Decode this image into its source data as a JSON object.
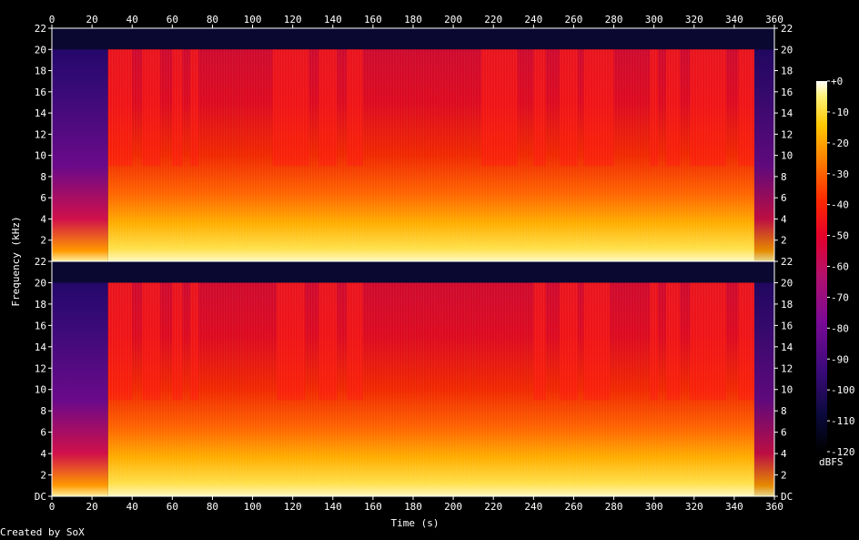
{
  "chart_data": {
    "type": "heatmap",
    "xlabel": "Time (s)",
    "ylabel": "Frequency (kHz)",
    "xlim": [
      0,
      360
    ],
    "x_ticks": [
      0,
      20,
      40,
      60,
      80,
      100,
      120,
      140,
      160,
      180,
      200,
      220,
      240,
      260,
      280,
      300,
      320,
      340,
      360
    ],
    "channels": [
      {
        "ylim": [
          0,
          22
        ],
        "y_ticks": [
          "2",
          "4",
          "6",
          "8",
          "10",
          "12",
          "14",
          "16",
          "18",
          "20",
          "22"
        ],
        "bright_segments": [
          [
            28,
            40
          ],
          [
            45,
            54
          ],
          [
            60,
            65
          ],
          [
            69,
            73
          ],
          [
            110,
            128
          ],
          [
            133,
            142
          ],
          [
            147,
            155
          ],
          [
            214,
            232
          ],
          [
            240,
            246
          ],
          [
            253,
            262
          ],
          [
            265,
            280
          ],
          [
            298,
            302
          ],
          [
            306,
            313
          ],
          [
            318,
            336
          ],
          [
            342,
            350
          ]
        ]
      },
      {
        "ylim": [
          0,
          22
        ],
        "y_ticks": [
          "DC",
          "2",
          "4",
          "6",
          "8",
          "10",
          "12",
          "14",
          "16",
          "18",
          "20",
          "22"
        ],
        "bright_segments": [
          [
            28,
            40
          ],
          [
            45,
            54
          ],
          [
            60,
            65
          ],
          [
            69,
            73
          ],
          [
            112,
            126
          ],
          [
            133,
            142
          ],
          [
            147,
            155
          ],
          [
            240,
            246
          ],
          [
            253,
            262
          ],
          [
            265,
            278
          ],
          [
            298,
            302
          ],
          [
            306,
            313
          ],
          [
            318,
            336
          ],
          [
            342,
            350
          ]
        ]
      }
    ],
    "colorbar": {
      "label": "dBFS",
      "ticks": [
        "+0",
        "-10",
        "-20",
        "-30",
        "-40",
        "-50",
        "-60",
        "-70",
        "-80",
        "-90",
        "-100",
        "-110",
        "-120"
      ],
      "range": [
        -120,
        0
      ]
    },
    "cutoff_khz": 20,
    "quiet_intro_until_s": 28
  },
  "credit": "Created by SoX"
}
